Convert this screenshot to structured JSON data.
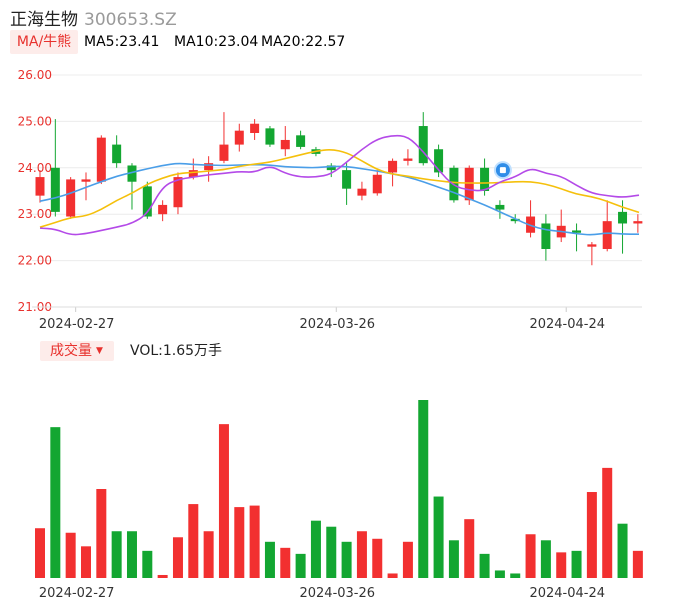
{
  "header": {
    "name": "正海生物",
    "code": "300653.SZ",
    "ma_button": "MA/牛熊",
    "ma5": "MA5:23.41",
    "ma10": "MA10:23.04",
    "ma20": "MA20:22.57"
  },
  "volume": {
    "button": "成交量",
    "label": "VOL:1.65万手"
  },
  "colors": {
    "up": "#f23030",
    "down": "#13a631",
    "ma5": "#b44ae8",
    "ma10": "#f5c00c",
    "ma20": "#4a9ee8"
  },
  "chart_data": {
    "type": "candlestick",
    "ylim": [
      21.0,
      26.0
    ],
    "yticks": [
      "26.00",
      "25.00",
      "24.00",
      "23.00",
      "22.00",
      "21.00"
    ],
    "xticks": [
      {
        "index": 2,
        "label": "2024-02-27"
      },
      {
        "index": 19,
        "label": "2024-03-26"
      },
      {
        "index": 34,
        "label": "2024-04-24"
      }
    ],
    "candles": [
      {
        "o": 23.4,
        "c": 23.8,
        "h": 23.95,
        "l": 23.25,
        "v": 0.33
      },
      {
        "o": 24.0,
        "c": 23.05,
        "h": 25.05,
        "l": 22.95,
        "v": 1.0
      },
      {
        "o": 22.95,
        "c": 23.75,
        "h": 23.8,
        "l": 22.9,
        "v": 0.3
      },
      {
        "o": 23.7,
        "c": 23.75,
        "h": 23.9,
        "l": 23.3,
        "v": 0.21
      },
      {
        "o": 23.7,
        "c": 24.65,
        "h": 24.7,
        "l": 23.65,
        "v": 0.59
      },
      {
        "o": 24.5,
        "c": 24.1,
        "h": 24.7,
        "l": 24.0,
        "v": 0.31
      },
      {
        "o": 24.05,
        "c": 23.7,
        "h": 24.1,
        "l": 23.1,
        "v": 0.31
      },
      {
        "o": 23.6,
        "c": 22.95,
        "h": 23.7,
        "l": 22.9,
        "v": 0.18
      },
      {
        "o": 23.0,
        "c": 23.2,
        "h": 23.3,
        "l": 22.85,
        "v": 0.02
      },
      {
        "o": 23.15,
        "c": 23.8,
        "h": 23.9,
        "l": 23.0,
        "v": 0.27
      },
      {
        "o": 23.8,
        "c": 23.95,
        "h": 24.2,
        "l": 23.75,
        "v": 0.49
      },
      {
        "o": 23.95,
        "c": 24.1,
        "h": 24.25,
        "l": 23.7,
        "v": 0.31
      },
      {
        "o": 24.15,
        "c": 24.5,
        "h": 25.2,
        "l": 24.1,
        "v": 1.02
      },
      {
        "o": 24.5,
        "c": 24.8,
        "h": 24.95,
        "l": 24.35,
        "v": 0.47
      },
      {
        "o": 24.75,
        "c": 24.95,
        "h": 25.05,
        "l": 24.6,
        "v": 0.48
      },
      {
        "o": 24.85,
        "c": 24.5,
        "h": 24.9,
        "l": 24.45,
        "v": 0.24
      },
      {
        "o": 24.4,
        "c": 24.6,
        "h": 24.9,
        "l": 24.25,
        "v": 0.2
      },
      {
        "o": 24.7,
        "c": 24.45,
        "h": 24.8,
        "l": 24.4,
        "v": 0.16
      },
      {
        "o": 24.4,
        "c": 24.3,
        "h": 24.45,
        "l": 24.25,
        "v": 0.38
      },
      {
        "o": 24.05,
        "c": 23.95,
        "h": 24.1,
        "l": 23.8,
        "v": 0.34
      },
      {
        "o": 23.95,
        "c": 23.55,
        "h": 24.1,
        "l": 23.2,
        "v": 0.24
      },
      {
        "o": 23.4,
        "c": 23.55,
        "h": 23.7,
        "l": 23.3,
        "v": 0.31
      },
      {
        "o": 23.45,
        "c": 23.85,
        "h": 23.95,
        "l": 23.4,
        "v": 0.26
      },
      {
        "o": 23.9,
        "c": 24.15,
        "h": 24.2,
        "l": 23.6,
        "v": 0.03
      },
      {
        "o": 24.15,
        "c": 24.2,
        "h": 24.4,
        "l": 24.05,
        "v": 0.24
      },
      {
        "o": 24.9,
        "c": 24.1,
        "h": 25.2,
        "l": 24.05,
        "v": 1.18
      },
      {
        "o": 24.4,
        "c": 23.9,
        "h": 24.5,
        "l": 23.8,
        "v": 0.54
      },
      {
        "o": 24.0,
        "c": 23.3,
        "h": 24.05,
        "l": 23.25,
        "v": 0.25
      },
      {
        "o": 23.3,
        "c": 24.0,
        "h": 24.05,
        "l": 23.2,
        "v": 0.39
      },
      {
        "o": 24.0,
        "c": 23.5,
        "h": 24.2,
        "l": 23.4,
        "v": 0.16
      },
      {
        "o": 23.2,
        "c": 23.1,
        "h": 23.3,
        "l": 22.9,
        "v": 0.05
      },
      {
        "o": 22.9,
        "c": 22.85,
        "h": 23.0,
        "l": 22.8,
        "v": 0.03
      },
      {
        "o": 22.6,
        "c": 22.95,
        "h": 23.3,
        "l": 22.5,
        "v": 0.29
      },
      {
        "o": 22.8,
        "c": 22.25,
        "h": 23.0,
        "l": 22.0,
        "v": 0.25
      },
      {
        "o": 22.5,
        "c": 22.75,
        "h": 23.1,
        "l": 22.4,
        "v": 0.17
      },
      {
        "o": 22.65,
        "c": 22.6,
        "h": 22.8,
        "l": 22.2,
        "v": 0.18
      },
      {
        "o": 22.3,
        "c": 22.35,
        "h": 22.4,
        "l": 21.9,
        "v": 0.57
      },
      {
        "o": 22.25,
        "c": 22.85,
        "h": 23.3,
        "l": 22.2,
        "v": 0.73
      },
      {
        "o": 23.05,
        "c": 22.8,
        "h": 23.3,
        "l": 22.15,
        "v": 0.36
      },
      {
        "o": 22.8,
        "c": 22.85,
        "h": 23.0,
        "l": 22.6,
        "v": 0.18
      }
    ],
    "ma5": [
      22.7,
      22.68,
      22.55,
      22.58,
      22.65,
      22.72,
      22.8,
      23.0,
      23.6,
      23.75,
      23.8,
      23.85,
      23.88,
      23.92,
      23.9,
      24.05,
      23.88,
      23.8,
      23.8,
      23.86,
      24.12,
      24.4,
      24.62,
      24.7,
      24.68,
      24.35,
      23.95,
      23.6,
      23.52,
      23.5,
      23.7,
      23.8,
      24.0,
      23.88,
      23.82,
      23.62,
      23.45,
      23.4,
      23.36,
      23.41
    ],
    "ma10": [
      22.72,
      22.82,
      22.93,
      22.96,
      23.1,
      23.3,
      23.45,
      23.65,
      23.78,
      23.88,
      23.9,
      23.93,
      23.96,
      24.03,
      24.08,
      24.12,
      24.2,
      24.28,
      24.36,
      24.4,
      24.33,
      24.15,
      23.96,
      23.86,
      23.82,
      23.76,
      23.72,
      23.68,
      23.67,
      23.67,
      23.68,
      23.7,
      23.7,
      23.65,
      23.55,
      23.43,
      23.38,
      23.28,
      23.15,
      23.04
    ],
    "ma20": [
      23.28,
      23.35,
      23.45,
      23.58,
      23.7,
      23.82,
      23.9,
      23.98,
      24.05,
      24.1,
      24.07,
      24.06,
      24.05,
      24.06,
      24.07,
      24.06,
      24.02,
      24.01,
      24.0,
      24.03,
      24.03,
      23.98,
      23.93,
      23.87,
      23.8,
      23.7,
      23.58,
      23.47,
      23.33,
      23.2,
      23.05,
      22.9,
      22.75,
      22.66,
      22.63,
      22.58,
      22.55,
      22.6,
      22.57,
      22.57
    ]
  }
}
